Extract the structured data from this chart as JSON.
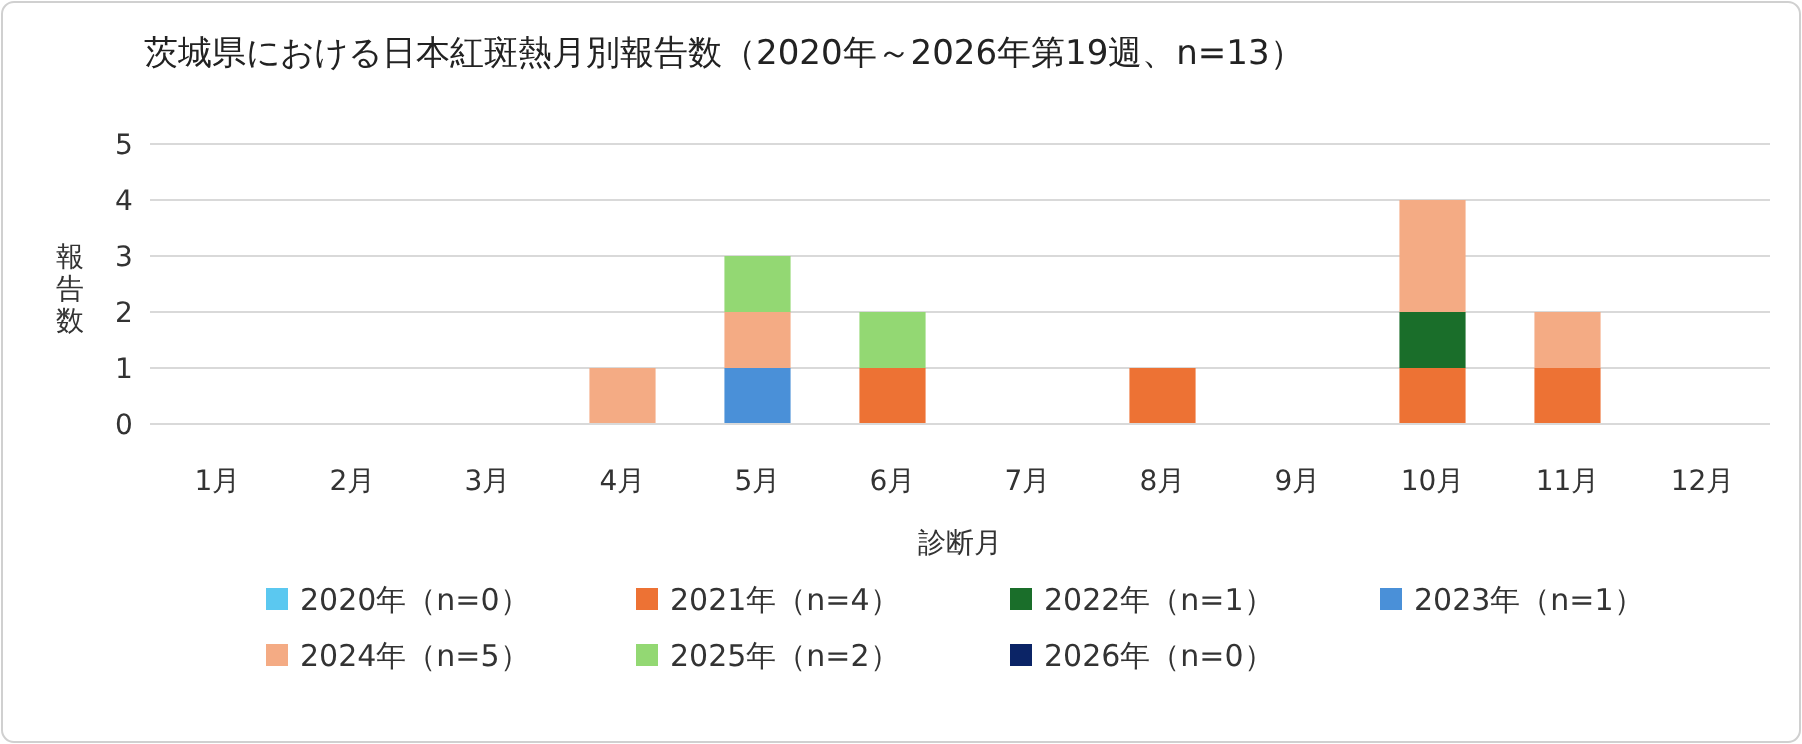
{
  "chart_data": {
    "type": "bar",
    "stacked": true,
    "title": "茨城県における日本紅斑熱月別報告数（2020年～2026年第19週、n=13）",
    "xlabel": "診断月",
    "ylabel": "報告数",
    "categories": [
      "1月",
      "2月",
      "3月",
      "4月",
      "5月",
      "6月",
      "7月",
      "8月",
      "9月",
      "10月",
      "11月",
      "12月"
    ],
    "series": [
      {
        "name": "2020年（n=0）",
        "color": "#5bc8f0",
        "values": [
          0,
          0,
          0,
          0,
          0,
          0,
          0,
          0,
          0,
          0,
          0,
          0
        ]
      },
      {
        "name": "2021年（n=4）",
        "color": "#ed7234",
        "values": [
          0,
          0,
          0,
          0,
          0,
          1,
          0,
          1,
          0,
          1,
          1,
          0
        ]
      },
      {
        "name": "2022年（n=1）",
        "color": "#1a6e2a",
        "values": [
          0,
          0,
          0,
          0,
          0,
          0,
          0,
          0,
          0,
          1,
          0,
          0
        ]
      },
      {
        "name": "2023年（n=1）",
        "color": "#4a90d8",
        "values": [
          0,
          0,
          0,
          0,
          1,
          0,
          0,
          0,
          0,
          0,
          0,
          0
        ]
      },
      {
        "name": "2024年（n=5）",
        "color": "#f4ab84",
        "values": [
          0,
          0,
          0,
          1,
          1,
          0,
          0,
          0,
          0,
          2,
          1,
          0
        ]
      },
      {
        "name": "2025年（n=2）",
        "color": "#93d873",
        "values": [
          0,
          0,
          0,
          0,
          1,
          1,
          0,
          0,
          0,
          0,
          0,
          0
        ]
      },
      {
        "name": "2026年（n=0）",
        "color": "#0b2466",
        "values": [
          0,
          0,
          0,
          0,
          0,
          0,
          0,
          0,
          0,
          0,
          0,
          0
        ]
      }
    ],
    "ylim": [
      0,
      5
    ],
    "yticks": [
      0,
      1,
      2,
      3,
      4,
      5
    ],
    "grid": "y",
    "legend": "bottom"
  }
}
